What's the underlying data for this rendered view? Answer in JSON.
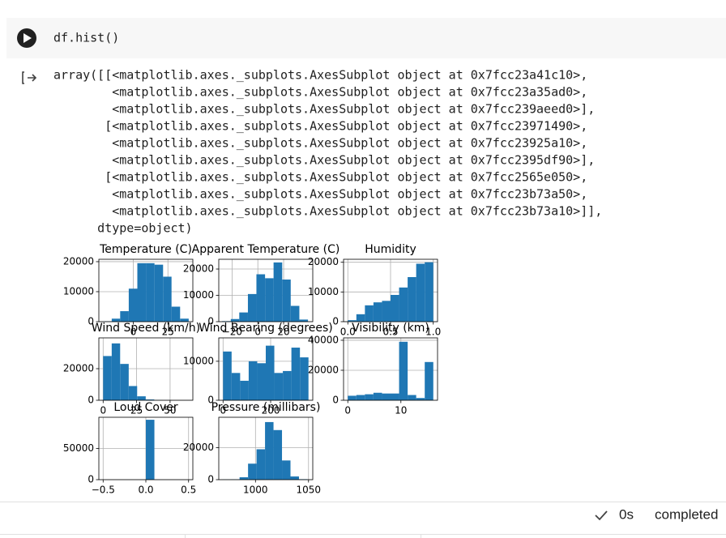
{
  "cell": {
    "code": "df.hist()"
  },
  "output": {
    "lines": [
      "array([[<matplotlib.axes._subplots.AxesSubplot object at 0x7fcc23a41c10>,",
      "        <matplotlib.axes._subplots.AxesSubplot object at 0x7fcc23a35ad0>,",
      "        <matplotlib.axes._subplots.AxesSubplot object at 0x7fcc239aeed0>],",
      "       [<matplotlib.axes._subplots.AxesSubplot object at 0x7fcc23971490>,",
      "        <matplotlib.axes._subplots.AxesSubplot object at 0x7fcc23925a10>,",
      "        <matplotlib.axes._subplots.AxesSubplot object at 0x7fcc2395df90>],",
      "       [<matplotlib.axes._subplots.AxesSubplot object at 0x7fcc2565e050>,",
      "        <matplotlib.axes._subplots.AxesSubplot object at 0x7fcc23b73a50>,",
      "        <matplotlib.axes._subplots.AxesSubplot object at 0x7fcc23b73a10>]],",
      "      dtype=object)"
    ]
  },
  "chart_data": [
    {
      "type": "histogram",
      "title": "Temperature (C)",
      "color": "#1f77b4",
      "grid": true,
      "bins": [
        -21.8,
        -15.6,
        -9.5,
        -3.3,
        2.9,
        9.1,
        15.3,
        21.5,
        27.6,
        33.8,
        40.0
      ],
      "values": [
        100,
        1000,
        3500,
        11000,
        19500,
        19500,
        19000,
        15000,
        5000,
        1000
      ],
      "xlim": [
        -24.9,
        43
      ],
      "xticks": [
        0,
        25
      ],
      "ylim": [
        0,
        20800
      ],
      "yticks": [
        0,
        10000,
        20000
      ]
    },
    {
      "type": "histogram",
      "title": "Apparent Temperature (C)",
      "color": "#1f77b4",
      "grid": true,
      "bins": [
        -27.7,
        -21.0,
        -14.4,
        -7.7,
        -1.1,
        5.6,
        12.2,
        18.9,
        25.5,
        32.2,
        38.9
      ],
      "values": [
        200,
        1000,
        3500,
        10500,
        18000,
        16500,
        22500,
        16000,
        6000,
        800
      ],
      "xlim": [
        -30.3,
        42.6
      ],
      "xticks": [
        {
          "value": -20,
          "label": "−20"
        },
        0,
        20
      ],
      "ylim": [
        0,
        23700
      ],
      "yticks": [
        0,
        10000,
        20000
      ]
    },
    {
      "type": "histogram",
      "title": "Humidity",
      "color": "#1f77b4",
      "grid": true,
      "bins": [
        0,
        0.1,
        0.2,
        0.3,
        0.4,
        0.5,
        0.6,
        0.7,
        0.8,
        0.9,
        1.0
      ],
      "values": [
        500,
        2500,
        5500,
        6500,
        7000,
        9000,
        11500,
        15000,
        19500,
        20000
      ],
      "xlim": [
        -0.05,
        1.05
      ],
      "xticks": [
        {
          "value": 0,
          "label": "0.0"
        },
        0.5,
        {
          "value": 1,
          "label": "1.0"
        }
      ],
      "ylim": [
        0,
        21000
      ],
      "yticks": [
        0,
        10000,
        20000
      ]
    },
    {
      "type": "histogram",
      "title": "Wind Speed (km/h)",
      "color": "#1f77b4",
      "grid": true,
      "bins": [
        0,
        6.4,
        12.7,
        19.1,
        25.4,
        31.8,
        38.2,
        44.5,
        50.9,
        57.2,
        63.6
      ],
      "values": [
        28000,
        36000,
        23000,
        9000,
        2500,
        500,
        100,
        30,
        0,
        0
      ],
      "xlim": [
        -3.2,
        67
      ],
      "xticks": [
        0,
        25,
        50
      ],
      "ylim": [
        0,
        39500
      ],
      "yticks": [
        0,
        20000
      ]
    },
    {
      "type": "histogram",
      "title": "Wind Bearing (degrees)",
      "color": "#1f77b4",
      "grid": true,
      "bins": [
        0,
        35.9,
        71.8,
        107.7,
        143.6,
        179.5,
        215.4,
        251.3,
        287.2,
        323.1,
        359
      ],
      "values": [
        12500,
        7000,
        5000,
        10000,
        9500,
        14000,
        7000,
        7500,
        13500,
        11000
      ],
      "xlim": [
        -18,
        377
      ],
      "xticks": [
        0,
        200
      ],
      "ylim": [
        0,
        16000
      ],
      "yticks": [
        0,
        10000
      ]
    },
    {
      "type": "histogram",
      "title": "Visibility (km)",
      "color": "#1f77b4",
      "grid": true,
      "bins": [
        0,
        1.61,
        3.22,
        4.83,
        6.44,
        8.05,
        9.66,
        11.27,
        12.88,
        14.49,
        16.1
      ],
      "values": [
        3000,
        3500,
        4000,
        5000,
        4500,
        4500,
        39000,
        3500,
        1500,
        25500
      ],
      "xlim": [
        -0.8,
        16.9
      ],
      "xticks": [
        0,
        10
      ],
      "ylim": [
        0,
        41600
      ],
      "yticks": [
        0,
        20000,
        40000
      ]
    },
    {
      "type": "histogram",
      "title": "Loud Cover",
      "color": "#1f77b4",
      "grid": true,
      "bins": [
        -0.5,
        -0.4,
        -0.3,
        -0.2,
        -0.1,
        0,
        0.1,
        0.2,
        0.3,
        0.4,
        0.5
      ],
      "values": [
        0,
        0,
        0,
        0,
        0,
        96000,
        0,
        0,
        0,
        0
      ],
      "xlim": [
        -0.55,
        0.55
      ],
      "xticks": [
        {
          "value": -0.5,
          "label": "−0.5"
        },
        {
          "value": 0,
          "label": "0.0"
        },
        0.5
      ],
      "ylim": [
        0,
        100000
      ],
      "yticks": [
        0,
        50000
      ]
    },
    {
      "type": "histogram",
      "title": "Pressure (millibars)",
      "color": "#1f77b4",
      "grid": true,
      "bins": [
        969,
        977,
        985,
        993,
        1001,
        1009,
        1017,
        1025,
        1033,
        1041,
        1049
      ],
      "values": [
        100,
        200,
        1500,
        10000,
        19000,
        36000,
        31000,
        12000,
        2000,
        300
      ],
      "xlim": [
        965.4,
        1054
      ],
      "xticks": [
        1000,
        1050
      ],
      "ylim": [
        0,
        39000
      ],
      "yticks": [
        0,
        20000
      ]
    }
  ],
  "status": {
    "time": "0s",
    "state": "completed"
  }
}
